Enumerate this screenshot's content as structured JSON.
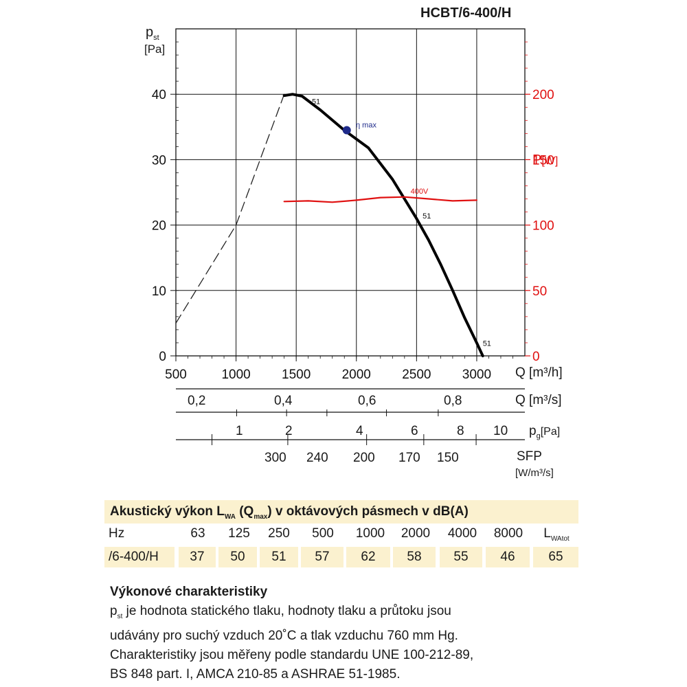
{
  "chart_data": {
    "type": "line",
    "title": "HCBT/6-400/H",
    "axes": {
      "y_left": {
        "label_main": "p",
        "label_sub": "st",
        "unit": "[Pa]",
        "range": [
          0,
          50
        ],
        "ticks": [
          0,
          10,
          20,
          30,
          40
        ]
      },
      "y_right": {
        "label_main": "P",
        "unit": "[W]",
        "range": [
          0,
          250
        ],
        "ticks": [
          0,
          50,
          100,
          150,
          200
        ]
      },
      "x_m3h": {
        "label": "Q [m³/h]",
        "range": [
          500,
          3400
        ],
        "ticks": [
          500,
          1000,
          1500,
          2000,
          2500,
          3000
        ]
      },
      "x_m3s": {
        "label": "Q [m³/s]",
        "ticks": [
          "0,2",
          "0,4",
          "0,6",
          "0,8"
        ]
      },
      "x_pg": {
        "label_main": "p",
        "label_sub": "g",
        "unit": "[Pa]",
        "ticks": [
          "1",
          "2",
          "4",
          "6",
          "8",
          "10"
        ]
      },
      "x_sfp": {
        "label": "SFP",
        "unit": "[W/m³/s]",
        "ticks": [
          "300",
          "240",
          "200",
          "170",
          "150"
        ]
      }
    },
    "grid": true,
    "series": [
      {
        "label": "51",
        "style": "dashed",
        "x": [
          500,
          650,
          800,
          1000,
          1200,
          1400
        ],
        "y": [
          5,
          9.5,
          14,
          20,
          30,
          40
        ]
      },
      {
        "label": "51",
        "style": "solid",
        "x": [
          1400,
          1470,
          1550,
          1700,
          1900,
          2100,
          2300,
          2500,
          2600,
          2700,
          2800,
          2900,
          3000,
          3050
        ],
        "y": [
          39.8,
          40,
          39.7,
          37.6,
          34.5,
          31.8,
          27,
          21,
          17.7,
          14,
          10,
          5.8,
          2,
          0
        ]
      },
      {
        "label": "400V",
        "axis": "y_right",
        "color": "#e01010",
        "x": [
          1400,
          1600,
          1800,
          2000,
          2200,
          2400,
          2600,
          2800,
          3000
        ],
        "y": [
          118,
          118.5,
          117.5,
          119,
          121,
          121.5,
          120,
          118.5,
          119
        ]
      }
    ],
    "annotations": [
      {
        "text": "51",
        "x": 1630,
        "y": 38.5
      },
      {
        "text": "η max",
        "x": 1950,
        "y": 34.5,
        "marker": true
      },
      {
        "text": "51",
        "x": 2550,
        "y": 21
      },
      {
        "text": "51",
        "x": 3050,
        "y": 1.5
      },
      {
        "text": "400V",
        "x": 2450,
        "y": 124,
        "axis": "y_right"
      }
    ]
  },
  "acoustic_table": {
    "title": "Akustický výkon L",
    "title_sub": "WA",
    "title_q": " (Q",
    "title_q_sub": "max",
    "title_rest": ") v oktávových pásmech v dB(A)",
    "hz_label": "Hz",
    "frequencies": [
      "63",
      "125",
      "250",
      "500",
      "1000",
      "2000",
      "4000",
      "8000"
    ],
    "total_label": "L",
    "total_sub": "WAtot",
    "model": "/6-400/H",
    "values": [
      "37",
      "50",
      "51",
      "57",
      "62",
      "58",
      "55",
      "46"
    ],
    "total": "65"
  },
  "description": {
    "title": "Výkonové charakteristiky",
    "p_main": "p",
    "p_sub": "st",
    "line1": " je hodnota statického tlaku, hodnoty tlaku a průtoku jsou",
    "line2": "udávány pro suchý vzduch 20˚C a tlak vzduchu 760 mm Hg.",
    "line3": "Charakteristiky jsou měřeny podle standardu UNE 100-212-89,",
    "line4": "BS 848 part. I, AMCA 210-85 a ASHRAE 51-1985."
  }
}
